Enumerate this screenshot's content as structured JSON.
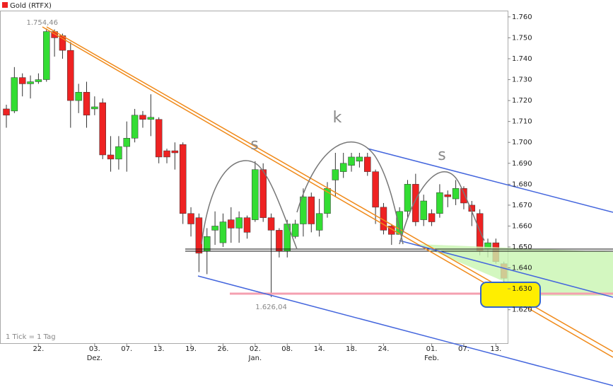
{
  "chart_data": {
    "type": "candlestick",
    "title": "Gold (RTFX)",
    "footnote": "1 Tick = 1 Tag",
    "pattern_labels": [
      "s",
      "k",
      "s"
    ],
    "categories": [
      null,
      null,
      null,
      null,
      "22.",
      null,
      null,
      null,
      null,
      null,
      null,
      "03.",
      null,
      null,
      null,
      "07.",
      null,
      null,
      null,
      "13.",
      null,
      null,
      null,
      "19.",
      null,
      null,
      null,
      "26.",
      null,
      null,
      null,
      "02.",
      null,
      null,
      null,
      "08.",
      null,
      null,
      null,
      "14.",
      null,
      null,
      null,
      "18.",
      null,
      null,
      null,
      "24.",
      null,
      null,
      null,
      null,
      null,
      "01.",
      null,
      null,
      null,
      "07.",
      null,
      null,
      null,
      "13.",
      null
    ],
    "month_labels": [
      null,
      null,
      null,
      null,
      null,
      null,
      null,
      null,
      null,
      null,
      null,
      "Dez.",
      null,
      null,
      null,
      null,
      null,
      null,
      null,
      null,
      null,
      null,
      null,
      null,
      null,
      null,
      null,
      null,
      null,
      null,
      null,
      "Jan.",
      null,
      null,
      null,
      null,
      null,
      null,
      null,
      null,
      null,
      null,
      null,
      null,
      null,
      null,
      null,
      null,
      null,
      null,
      null,
      null,
      null,
      "Feb.",
      null,
      null,
      null,
      null,
      null,
      null,
      null,
      null,
      null
    ],
    "open": [
      1716,
      1715,
      1731,
      1728,
      1729,
      1730,
      1753,
      1751,
      1744,
      1720,
      1724,
      1716,
      1719,
      1694,
      1692,
      1698,
      1702,
      1713,
      1711,
      1711,
      1696,
      1696,
      1699,
      1666,
      1664,
      1648,
      1658,
      1652,
      1663,
      1659,
      1664,
      1663,
      1687,
      1664,
      1658,
      1648,
      1655,
      1661,
      1674,
      1658,
      1666,
      1682,
      1686,
      1689,
      1691,
      1693,
      1686,
      1669,
      1660,
      1656,
      1667,
      1680,
      1663,
      1666,
      1666,
      1675,
      1673,
      1678,
      1670,
      1666,
      1649,
      1652,
      1642
    ],
    "high": [
      1718,
      1736,
      1733,
      1732,
      1733,
      1754.46,
      1754,
      1752,
      1748,
      1728,
      1729,
      1722,
      1721,
      1703,
      1703,
      1710,
      1716,
      1715,
      1723,
      1712,
      1697,
      1700,
      1700,
      1669,
      1666,
      1659,
      1667,
      1666,
      1669,
      1667,
      1665,
      1691,
      1690,
      1666,
      1659,
      1663,
      1663,
      1678,
      1676,
      1673,
      1681,
      1695,
      1695,
      1695,
      1695,
      1695,
      1687,
      1671,
      1661,
      1669,
      1682,
      1685,
      1675,
      1668,
      1680,
      1677,
      1682,
      1679,
      1672,
      1668,
      1654,
      1654,
      1643
    ],
    "low": [
      1707,
      1714,
      1722,
      1721,
      1728,
      1729,
      1741,
      1740,
      1707,
      1714,
      1707,
      1713,
      1692,
      1686,
      1687,
      1686,
      1700,
      1707,
      1703,
      1690,
      1690,
      1687,
      1661,
      1655,
      1638,
      1637,
      1651,
      1650,
      1652,
      1652,
      1654,
      1662,
      1662,
      1626.04,
      1645,
      1645,
      1654,
      1655,
      1657,
      1655,
      1664,
      1674,
      1683,
      1686,
      1688,
      1684,
      1661,
      1656,
      1651,
      1656,
      1664,
      1660,
      1660,
      1660,
      1664,
      1669,
      1670,
      1668,
      1660,
      1646,
      1645,
      1642,
      1633
    ],
    "close": [
      1713,
      1731,
      1728,
      1729,
      1730,
      1753,
      1750,
      1744,
      1720,
      1724,
      1713,
      1717,
      1694,
      1692,
      1698,
      1702,
      1713,
      1711,
      1712,
      1693,
      1693,
      1695,
      1666,
      1661,
      1647,
      1655,
      1660,
      1662,
      1659,
      1664,
      1657,
      1687,
      1664,
      1658,
      1648,
      1661,
      1661,
      1674,
      1661,
      1666,
      1678,
      1687,
      1690,
      1693,
      1693,
      1686,
      1669,
      1658,
      1656,
      1667,
      1680,
      1662,
      1672,
      1662,
      1676,
      1674,
      1678,
      1671,
      1667,
      1648,
      1652,
      1643,
      1635
    ],
    "up_color": "#33dd33",
    "down_color": "#ee2222",
    "high_label": {
      "value": 1754.46,
      "label": "1.754,46"
    },
    "low_label": {
      "value": 1626.04,
      "label": "1.626,04"
    },
    "ylim": [
      1604,
      1763
    ],
    "yticks": [
      {
        "value": 1620,
        "label": "1.620"
      },
      {
        "value": 1630,
        "label": "1.630"
      },
      {
        "value": 1640,
        "label": "1.640"
      },
      {
        "value": 1650,
        "label": "1.650"
      },
      {
        "value": 1660,
        "label": "1.660"
      },
      {
        "value": 1670,
        "label": "1.670"
      },
      {
        "value": 1680,
        "label": "1.680"
      },
      {
        "value": 1690,
        "label": "1.690"
      },
      {
        "value": 1700,
        "label": "1.700"
      },
      {
        "value": 1710,
        "label": "1.710"
      },
      {
        "value": 1720,
        "label": "1.720"
      },
      {
        "value": 1730,
        "label": "1.730"
      },
      {
        "value": 1740,
        "label": "1.740"
      },
      {
        "value": 1750,
        "label": "1.750"
      },
      {
        "value": 1760,
        "label": "1.760"
      }
    ]
  }
}
